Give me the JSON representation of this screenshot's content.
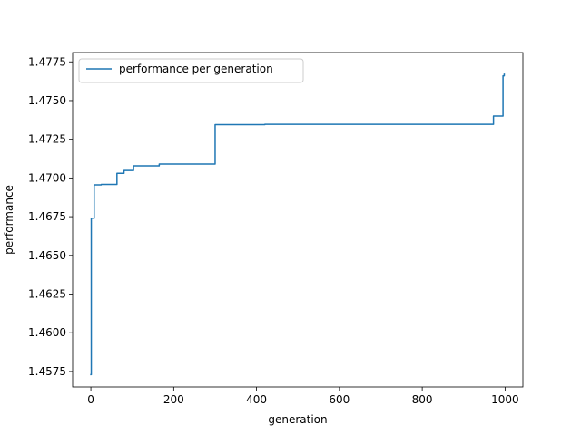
{
  "chart_data": {
    "type": "line",
    "title": "",
    "xlabel": "generation",
    "ylabel": "performance",
    "xlim": [
      -44,
      1043
    ],
    "ylim": [
      1.4565,
      1.4781
    ],
    "xticks": [
      0,
      200,
      400,
      600,
      800,
      1000
    ],
    "yticks": [
      1.4575,
      1.46,
      1.4625,
      1.465,
      1.4675,
      1.47,
      1.4725,
      1.475,
      1.4775
    ],
    "grid": false,
    "legend_position": "upper left",
    "series": [
      {
        "name": "performance per generation",
        "color": "#1f77b4",
        "step": "post",
        "x": [
          0,
          1,
          2,
          5,
          8,
          25,
          63,
          80,
          103,
          165,
          300,
          420,
          972,
          995,
          998
        ],
        "y": [
          1.4573,
          1.4674,
          1.4674,
          1.4674,
          1.46955,
          1.46958,
          1.4703,
          1.47048,
          1.47078,
          1.4709,
          1.47345,
          1.47347,
          1.474,
          1.4766,
          1.4767
        ]
      }
    ]
  }
}
